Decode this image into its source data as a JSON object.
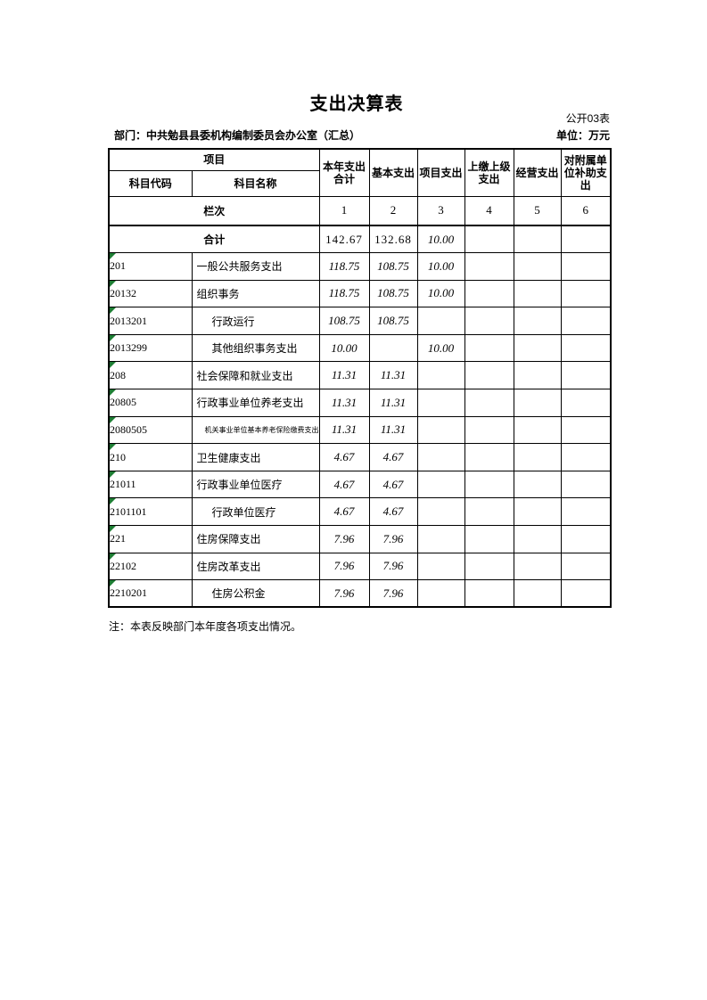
{
  "page": {
    "title": "支出决算表",
    "table_number": "公开03表",
    "department": "部门：中共勉县县委机构编制委员会办公室（汇总）",
    "unit": "单位：万元",
    "note": "注：本表反映部门本年度各项支出情况。"
  },
  "table": {
    "header": {
      "project": "项目",
      "subject_code": "科目代码",
      "subject_name": "科目名称",
      "value_columns": [
        "本年支出合计",
        "基本支出",
        "项目支出",
        "上缴上级支出",
        "经营支出",
        "对附属单位补助支出"
      ],
      "row_label": "栏次",
      "column_numbers": [
        "1",
        "2",
        "3",
        "4",
        "5",
        "6"
      ]
    },
    "total_row": {
      "label": "合计",
      "values": [
        "142.67",
        "132.68",
        "10.00",
        "",
        "",
        ""
      ]
    },
    "rows": [
      {
        "code": "201",
        "name": "一般公共服务支出",
        "level": 1,
        "values": [
          "118.75",
          "108.75",
          "10.00",
          "",
          "",
          ""
        ]
      },
      {
        "code": "20132",
        "name": "组织事务",
        "level": 2,
        "values": [
          "118.75",
          "108.75",
          "10.00",
          "",
          "",
          ""
        ]
      },
      {
        "code": "2013201",
        "name": "行政运行",
        "level": 3,
        "values": [
          "108.75",
          "108.75",
          "",
          "",
          "",
          ""
        ]
      },
      {
        "code": "2013299",
        "name": "其他组织事务支出",
        "level": 3,
        "values": [
          "10.00",
          "",
          "10.00",
          "",
          "",
          ""
        ]
      },
      {
        "code": "208",
        "name": "社会保障和就业支出",
        "level": 1,
        "values": [
          "11.31",
          "11.31",
          "",
          "",
          "",
          ""
        ]
      },
      {
        "code": "20805",
        "name": "行政事业单位养老支出",
        "level": 2,
        "values": [
          "11.31",
          "11.31",
          "",
          "",
          "",
          ""
        ]
      },
      {
        "code": "2080505",
        "name": "机关事业单位基本养老保险缴费支出",
        "level": 3,
        "small": true,
        "values": [
          "11.31",
          "11.31",
          "",
          "",
          "",
          ""
        ]
      },
      {
        "code": "210",
        "name": "卫生健康支出",
        "level": 1,
        "values": [
          "4.67",
          "4.67",
          "",
          "",
          "",
          ""
        ]
      },
      {
        "code": "21011",
        "name": "行政事业单位医疗",
        "level": 2,
        "values": [
          "4.67",
          "4.67",
          "",
          "",
          "",
          ""
        ]
      },
      {
        "code": "2101101",
        "name": "行政单位医疗",
        "level": 3,
        "values": [
          "4.67",
          "4.67",
          "",
          "",
          "",
          ""
        ]
      },
      {
        "code": "221",
        "name": "住房保障支出",
        "level": 1,
        "values": [
          "7.96",
          "7.96",
          "",
          "",
          "",
          ""
        ]
      },
      {
        "code": "22102",
        "name": "住房改革支出",
        "level": 2,
        "values": [
          "7.96",
          "7.96",
          "",
          "",
          "",
          ""
        ]
      },
      {
        "code": "2210201",
        "name": "住房公积金",
        "level": 3,
        "values": [
          "7.96",
          "7.96",
          "",
          "",
          "",
          ""
        ]
      }
    ],
    "colors": {
      "triangle_green": "#1e7e34",
      "border": "#000000"
    }
  }
}
